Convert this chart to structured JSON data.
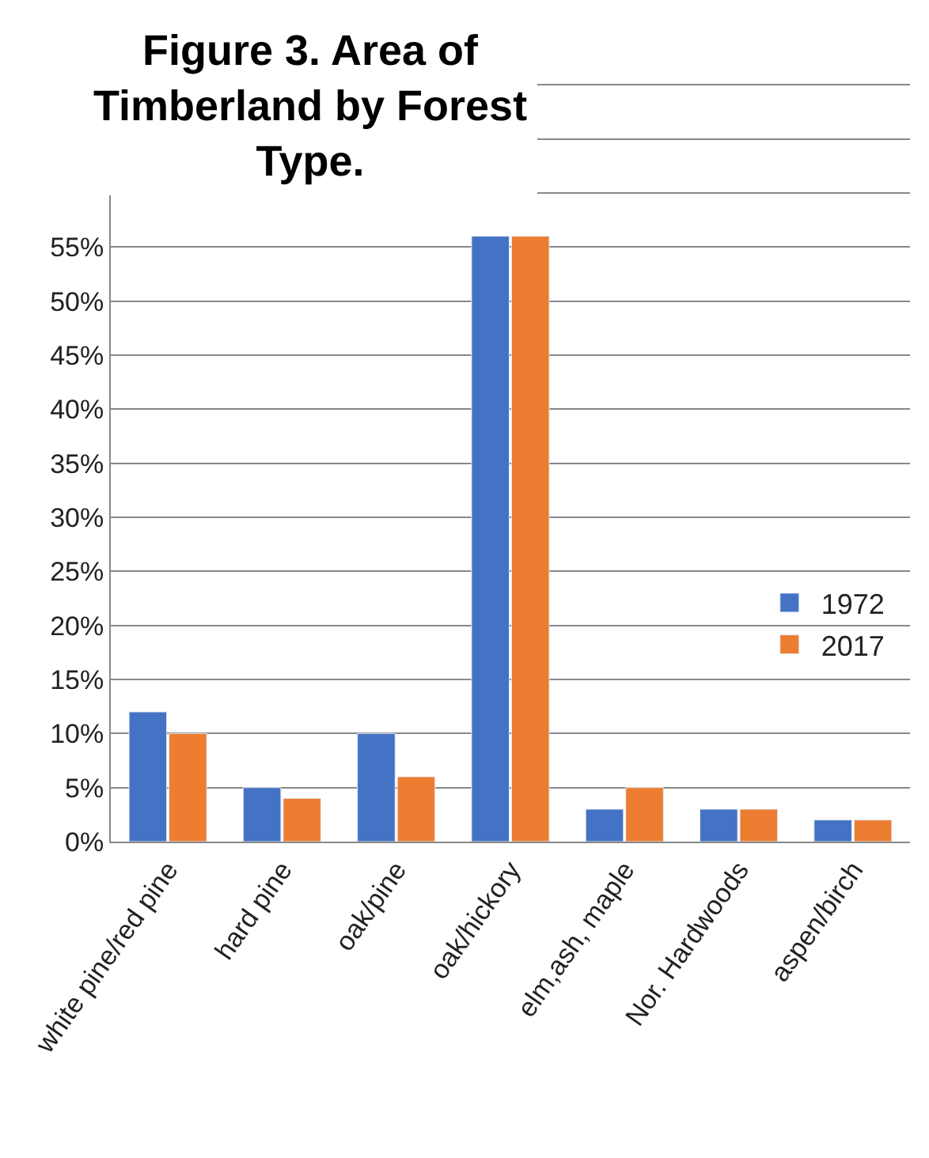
{
  "chart_data": {
    "type": "bar",
    "title": "Figure 3. Area of Timberland by Forest Type.",
    "categories": [
      "white pine/red pine",
      "hard pine",
      "oak/pine",
      "oak/hickory",
      "elm,ash, maple",
      "Nor. Hardwoods",
      "aspen/birch"
    ],
    "series": [
      {
        "name": "1972",
        "color": "#4472c4",
        "values": [
          12,
          5,
          10,
          56,
          3,
          3,
          2
        ]
      },
      {
        "name": "2017",
        "color": "#ed7d31",
        "values": [
          10,
          4,
          6,
          56,
          5,
          3,
          2
        ]
      }
    ],
    "ylim": [
      0,
      72
    ],
    "yticks": [
      {
        "value": 0,
        "label": "0%"
      },
      {
        "value": 5,
        "label": "5%"
      },
      {
        "value": 10,
        "label": "10%"
      },
      {
        "value": 15,
        "label": "15%"
      },
      {
        "value": 20,
        "label": "20%"
      },
      {
        "value": 25,
        "label": "25%"
      },
      {
        "value": 30,
        "label": "30%"
      },
      {
        "value": 35,
        "label": "35%"
      },
      {
        "value": 40,
        "label": "40%"
      },
      {
        "value": 45,
        "label": "45%"
      },
      {
        "value": 50,
        "label": "50%"
      },
      {
        "value": 55,
        "label": "55%"
      },
      {
        "value": 60,
        "label": null
      },
      {
        "value": 65,
        "label": null
      },
      {
        "value": 70,
        "label": null
      }
    ],
    "grid": "y",
    "legend": "right"
  }
}
